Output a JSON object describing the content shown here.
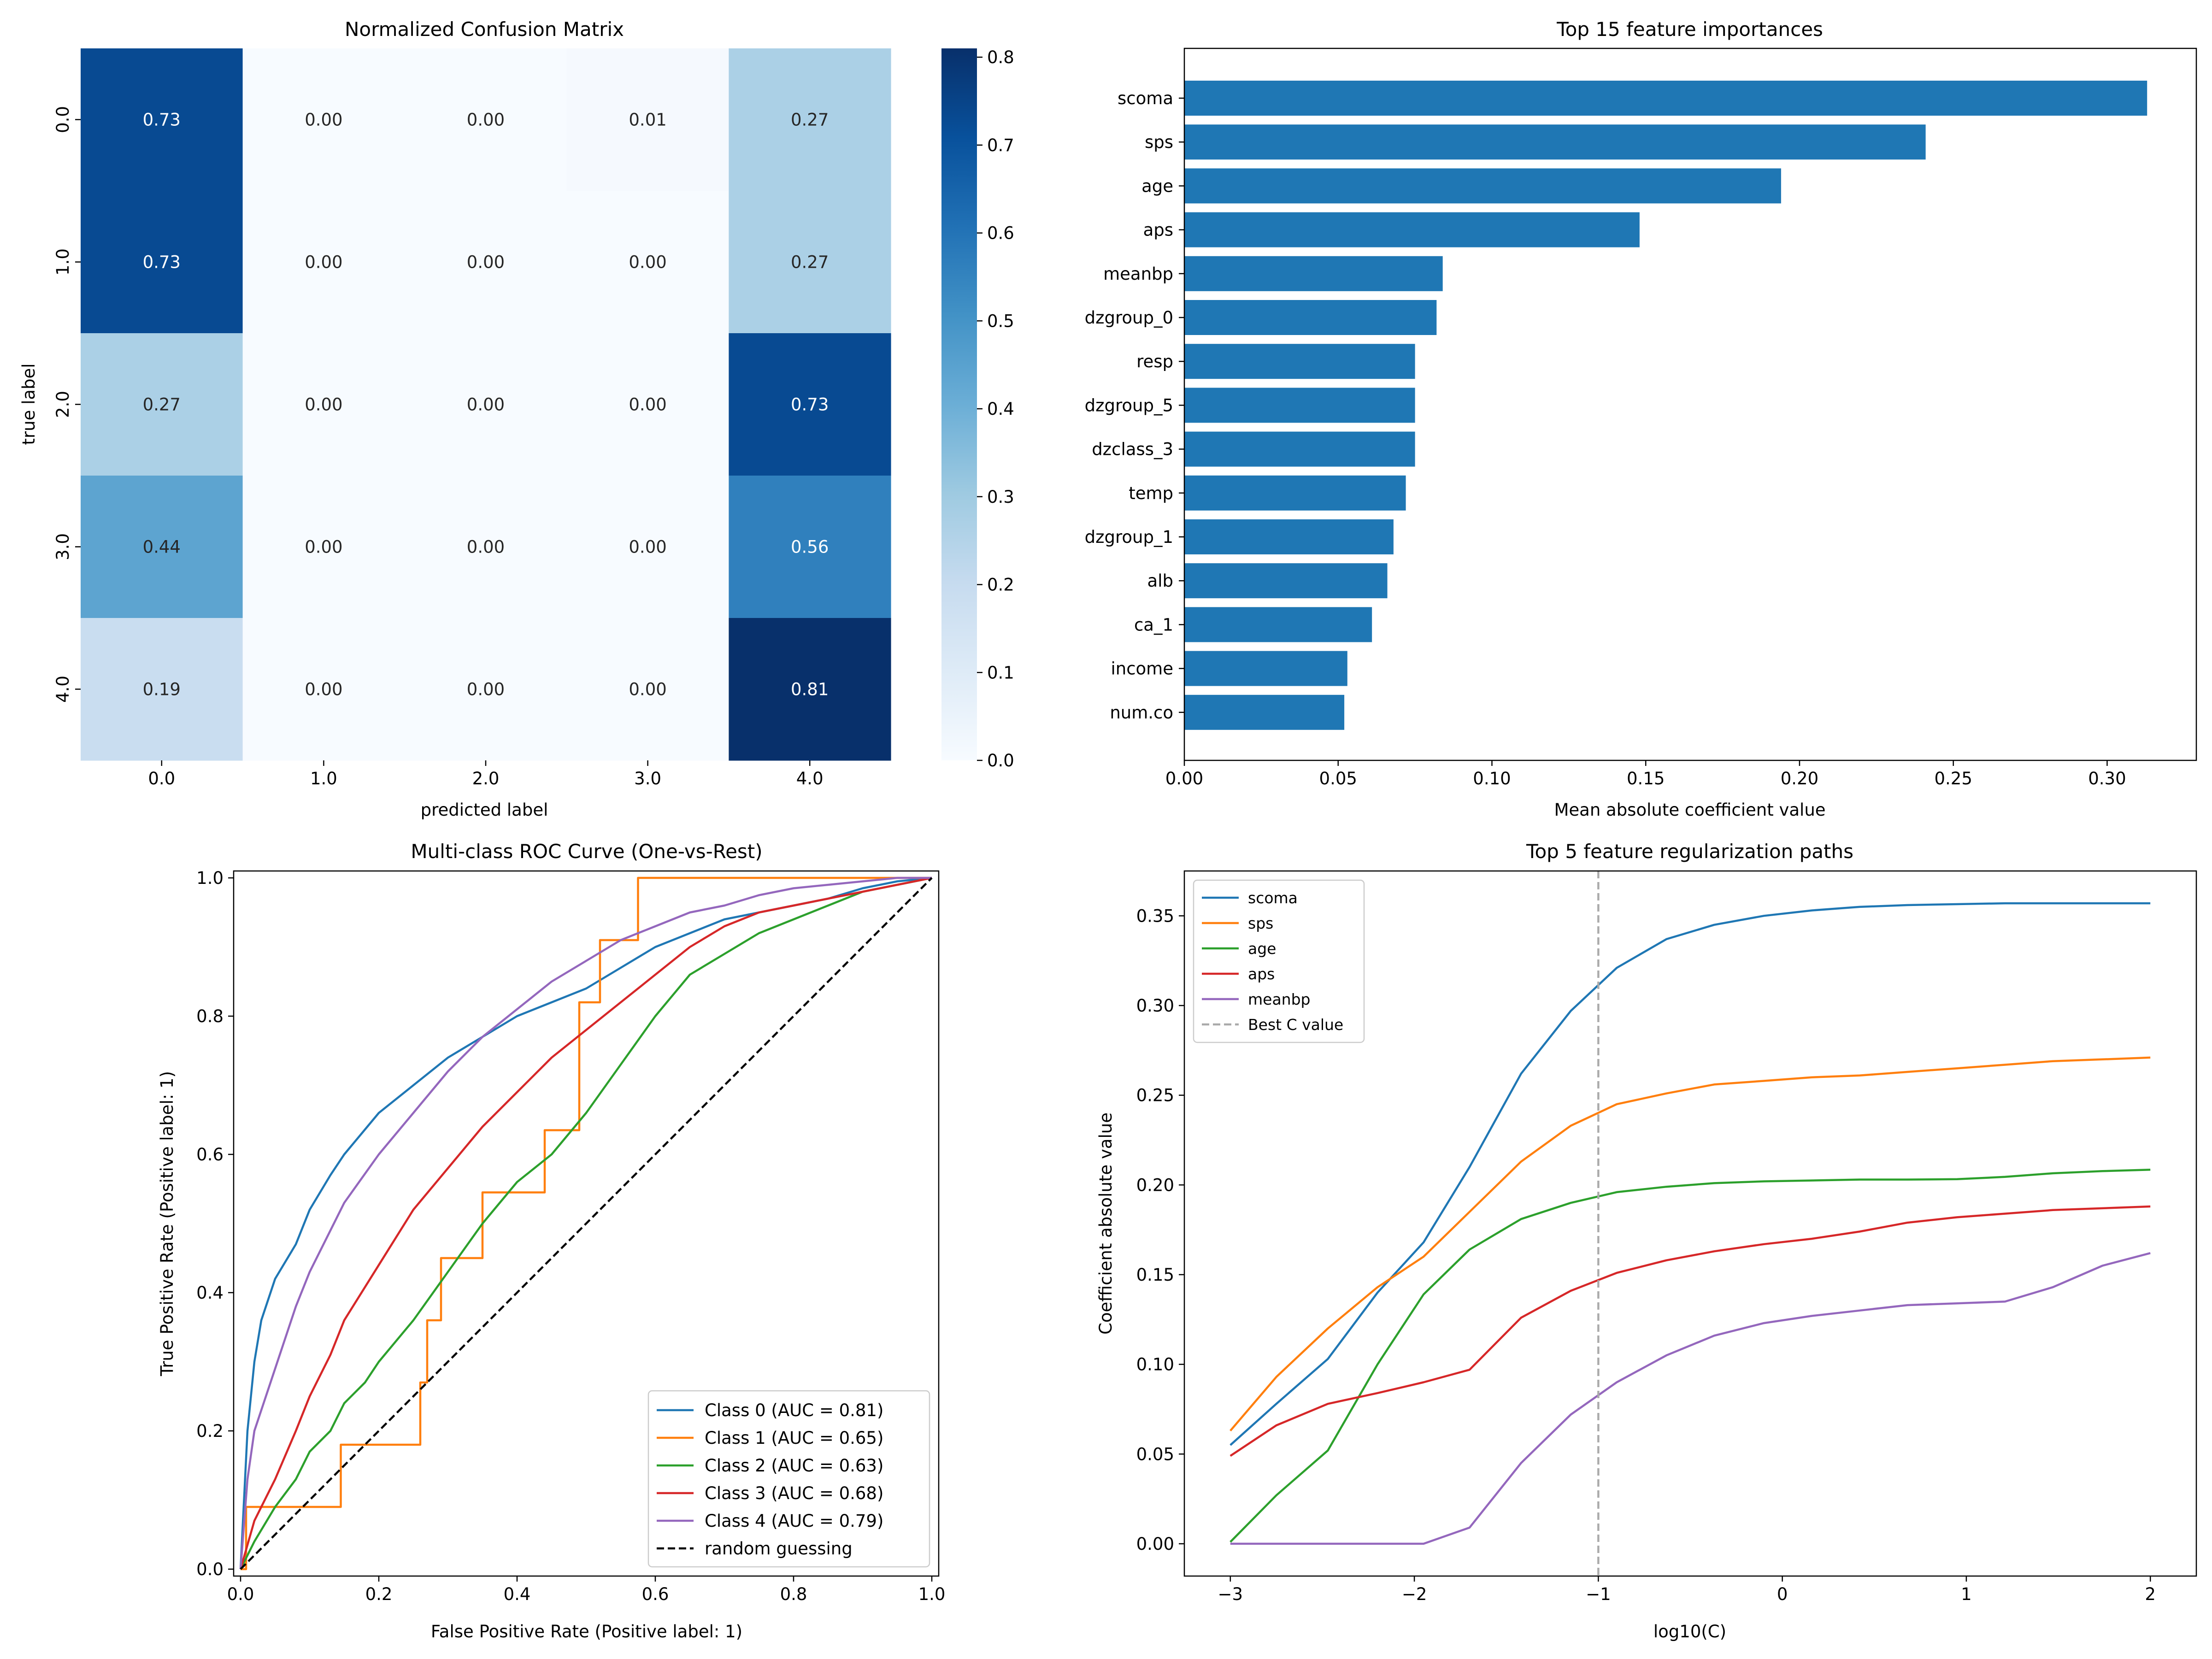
{
  "figure": {
    "colors": {
      "axis": "#000000",
      "tab_blue": "#1f77b4",
      "tab_orange": "#ff7f0e",
      "tab_green": "#2ca02c",
      "tab_red": "#d62728",
      "tab_purple": "#9467bd",
      "best_c_line": "#aaaaaa",
      "legend_edge": "#cccccc"
    }
  },
  "chart_data": [
    {
      "type": "heatmap",
      "title": "Normalized Confusion Matrix",
      "xlabel": "predicted label",
      "ylabel": "true label",
      "row_labels": [
        "0.0",
        "1.0",
        "2.0",
        "3.0",
        "4.0"
      ],
      "col_labels": [
        "0.0",
        "1.0",
        "2.0",
        "3.0",
        "4.0"
      ],
      "values": [
        [
          0.73,
          0.0,
          0.0,
          0.01,
          0.27
        ],
        [
          0.73,
          0.0,
          0.0,
          0.0,
          0.27
        ],
        [
          0.27,
          0.0,
          0.0,
          0.0,
          0.73
        ],
        [
          0.44,
          0.0,
          0.0,
          0.0,
          0.56
        ],
        [
          0.19,
          0.0,
          0.0,
          0.0,
          0.81
        ]
      ],
      "cell_labels": [
        [
          "0.73",
          "0.00",
          "0.00",
          "0.01",
          "0.27"
        ],
        [
          "0.73",
          "0.00",
          "0.00",
          "0.00",
          "0.27"
        ],
        [
          "0.27",
          "0.00",
          "0.00",
          "0.00",
          "0.73"
        ],
        [
          "0.44",
          "0.00",
          "0.00",
          "0.00",
          "0.56"
        ],
        [
          "0.19",
          "0.00",
          "0.00",
          "0.00",
          "0.81"
        ]
      ],
      "colormap": "Blues",
      "colorbar": {
        "vmin": 0.0,
        "vmax": 0.81,
        "ticks": [
          0.0,
          0.1,
          0.2,
          0.3,
          0.4,
          0.5,
          0.6,
          0.7,
          0.8
        ],
        "tick_labels": [
          "0.0",
          "0.1",
          "0.2",
          "0.3",
          "0.4",
          "0.5",
          "0.6",
          "0.7",
          "0.8"
        ]
      }
    },
    {
      "type": "bar",
      "orientation": "horizontal",
      "title": "Top 15 feature importances",
      "xlabel": "Mean absolute coefficient value",
      "ylabel": "",
      "categories": [
        "scoma",
        "sps",
        "age",
        "aps",
        "meanbp",
        "dzgroup_0",
        "resp",
        "dzgroup_5",
        "dzclass_3",
        "temp",
        "dzgroup_1",
        "alb",
        "ca_1",
        "income",
        "num.co"
      ],
      "values": [
        0.313,
        0.241,
        0.194,
        0.148,
        0.084,
        0.082,
        0.075,
        0.075,
        0.075,
        0.072,
        0.068,
        0.066,
        0.061,
        0.053,
        0.052
      ],
      "xlim": [
        0,
        0.329
      ],
      "xticks": [
        0.0,
        0.05,
        0.1,
        0.15,
        0.2,
        0.25,
        0.3
      ],
      "xtick_labels": [
        "0.00",
        "0.05",
        "0.10",
        "0.15",
        "0.20",
        "0.25",
        "0.30"
      ],
      "color": "#1f77b4"
    },
    {
      "type": "line",
      "title": "Multi-class ROC Curve (One-vs-Rest)",
      "xlabel": "False Positive Rate (Positive label: 1)",
      "ylabel": "True Positive Rate (Positive label: 1)",
      "xlim": [
        -0.01,
        1.01
      ],
      "ylim": [
        -0.01,
        1.01
      ],
      "xticks": [
        0.0,
        0.2,
        0.4,
        0.6,
        0.8,
        1.0
      ],
      "xtick_labels": [
        "0.0",
        "0.2",
        "0.4",
        "0.6",
        "0.8",
        "1.0"
      ],
      "yticks": [
        0.0,
        0.2,
        0.4,
        0.6,
        0.8,
        1.0
      ],
      "ytick_labels": [
        "0.0",
        "0.2",
        "0.4",
        "0.6",
        "0.8",
        "1.0"
      ],
      "legend": "lower right",
      "series": [
        {
          "name": "Class 0 (AUC = 0.81)",
          "color": "#1f77b4",
          "dashed": false,
          "step": false,
          "x": [
            0,
            0.01,
            0.02,
            0.03,
            0.05,
            0.08,
            0.1,
            0.13,
            0.15,
            0.2,
            0.25,
            0.3,
            0.35,
            0.4,
            0.45,
            0.5,
            0.55,
            0.6,
            0.65,
            0.7,
            0.75,
            0.8,
            0.85,
            0.9,
            0.95,
            1.0
          ],
          "y": [
            0,
            0.2,
            0.3,
            0.36,
            0.42,
            0.47,
            0.52,
            0.57,
            0.6,
            0.66,
            0.7,
            0.74,
            0.77,
            0.8,
            0.82,
            0.84,
            0.87,
            0.9,
            0.92,
            0.94,
            0.95,
            0.96,
            0.97,
            0.985,
            0.995,
            1.0
          ]
        },
        {
          "name": "Class 1 (AUC = 0.65)",
          "color": "#ff7f0e",
          "dashed": false,
          "step": true,
          "x": [
            0,
            0.008,
            0.008,
            0.03,
            0.03,
            0.145,
            0.145,
            0.26,
            0.26,
            0.27,
            0.27,
            0.28,
            0.28,
            0.29,
            0.29,
            0.35,
            0.35,
            0.44,
            0.44,
            0.49,
            0.49,
            0.52,
            0.52,
            0.575,
            0.575,
            1.0
          ],
          "y": [
            0,
            0,
            0.09,
            0.09,
            0.09,
            0.09,
            0.18,
            0.18,
            0.27,
            0.27,
            0.36,
            0.36,
            0.36,
            0.36,
            0.45,
            0.45,
            0.545,
            0.545,
            0.635,
            0.635,
            0.82,
            0.82,
            0.91,
            0.91,
            1.0,
            1.0
          ]
        },
        {
          "name": "Class 2 (AUC = 0.63)",
          "color": "#2ca02c",
          "dashed": false,
          "step": false,
          "x": [
            0,
            0.02,
            0.05,
            0.08,
            0.1,
            0.13,
            0.15,
            0.18,
            0.2,
            0.25,
            0.3,
            0.35,
            0.4,
            0.45,
            0.5,
            0.55,
            0.6,
            0.65,
            0.7,
            0.75,
            0.8,
            0.85,
            0.9,
            0.95,
            1.0
          ],
          "y": [
            0,
            0.04,
            0.09,
            0.13,
            0.17,
            0.2,
            0.24,
            0.27,
            0.3,
            0.36,
            0.43,
            0.5,
            0.56,
            0.6,
            0.66,
            0.73,
            0.8,
            0.86,
            0.89,
            0.92,
            0.94,
            0.96,
            0.98,
            0.99,
            1.0
          ]
        },
        {
          "name": "Class 3 (AUC = 0.68)",
          "color": "#d62728",
          "dashed": false,
          "step": false,
          "x": [
            0,
            0.02,
            0.05,
            0.08,
            0.1,
            0.13,
            0.15,
            0.2,
            0.25,
            0.3,
            0.35,
            0.4,
            0.45,
            0.5,
            0.55,
            0.6,
            0.65,
            0.7,
            0.75,
            0.8,
            0.85,
            0.9,
            0.95,
            1.0
          ],
          "y": [
            0,
            0.07,
            0.13,
            0.2,
            0.25,
            0.31,
            0.36,
            0.44,
            0.52,
            0.58,
            0.64,
            0.69,
            0.74,
            0.78,
            0.82,
            0.86,
            0.9,
            0.93,
            0.95,
            0.96,
            0.97,
            0.98,
            0.99,
            1.0
          ]
        },
        {
          "name": "Class 4 (AUC = 0.79)",
          "color": "#9467bd",
          "dashed": false,
          "step": false,
          "x": [
            0,
            0.01,
            0.02,
            0.04,
            0.06,
            0.08,
            0.1,
            0.13,
            0.15,
            0.2,
            0.25,
            0.3,
            0.35,
            0.4,
            0.45,
            0.5,
            0.55,
            0.6,
            0.65,
            0.7,
            0.75,
            0.8,
            0.85,
            0.9,
            0.95,
            1.0
          ],
          "y": [
            0,
            0.13,
            0.2,
            0.26,
            0.32,
            0.38,
            0.43,
            0.49,
            0.53,
            0.6,
            0.66,
            0.72,
            0.77,
            0.81,
            0.85,
            0.88,
            0.91,
            0.93,
            0.95,
            0.96,
            0.975,
            0.985,
            0.99,
            0.995,
            1.0,
            1.0
          ]
        },
        {
          "name": "random guessing",
          "color": "#000000",
          "dashed": true,
          "step": false,
          "x": [
            0,
            1
          ],
          "y": [
            0,
            1
          ]
        }
      ]
    },
    {
      "type": "line",
      "title": "Top 5 feature regularization paths",
      "xlabel": "log10(C)",
      "ylabel": "Coefficient absolute value",
      "xlim": [
        -3.25,
        2.25
      ],
      "ylim": [
        -0.018,
        0.375
      ],
      "xticks": [
        -3,
        -2,
        -1,
        0,
        1,
        2
      ],
      "xtick_labels": [
        "−3",
        "−2",
        "−1",
        "0",
        "1",
        "2"
      ],
      "yticks": [
        0.0,
        0.05,
        0.1,
        0.15,
        0.2,
        0.25,
        0.3,
        0.35
      ],
      "ytick_labels": [
        "0.00",
        "0.05",
        "0.10",
        "0.15",
        "0.20",
        "0.25",
        "0.30",
        "0.35"
      ],
      "legend": "upper left",
      "best_c": {
        "label": "Best C value",
        "x": -1.0
      },
      "x": [
        -3.0,
        -2.75,
        -2.47,
        -2.2,
        -1.95,
        -1.7,
        -1.42,
        -1.15,
        -0.9,
        -0.63,
        -0.37,
        -0.1,
        0.16,
        0.42,
        0.68,
        0.95,
        1.21,
        1.47,
        1.74,
        2.0
      ],
      "series": [
        {
          "name": "scoma",
          "color": "#1f77b4",
          "values": [
            0.055,
            0.078,
            0.103,
            0.14,
            0.168,
            0.21,
            0.262,
            0.297,
            0.321,
            0.337,
            0.345,
            0.35,
            0.353,
            0.355,
            0.356,
            0.3565,
            0.357,
            0.357,
            0.357,
            0.357
          ]
        },
        {
          "name": "sps",
          "color": "#ff7f0e",
          "values": [
            0.063,
            0.093,
            0.12,
            0.143,
            0.16,
            0.185,
            0.213,
            0.233,
            0.245,
            0.251,
            0.256,
            0.258,
            0.26,
            0.261,
            0.263,
            0.265,
            0.267,
            0.269,
            0.27,
            0.271
          ]
        },
        {
          "name": "age",
          "color": "#2ca02c",
          "values": [
            0.001,
            0.027,
            0.052,
            0.1,
            0.139,
            0.164,
            0.181,
            0.19,
            0.196,
            0.199,
            0.201,
            0.202,
            0.2025,
            0.203,
            0.203,
            0.2032,
            0.2045,
            0.2065,
            0.2077,
            0.2085
          ]
        },
        {
          "name": "aps",
          "color": "#d62728",
          "values": [
            0.049,
            0.066,
            0.078,
            0.084,
            0.09,
            0.097,
            0.126,
            0.141,
            0.151,
            0.158,
            0.163,
            0.167,
            0.17,
            0.174,
            0.179,
            0.182,
            0.184,
            0.186,
            0.187,
            0.188
          ]
        },
        {
          "name": "meanbp",
          "color": "#9467bd",
          "values": [
            0.0,
            0.0,
            0.0,
            0.0,
            0.0,
            0.009,
            0.045,
            0.072,
            0.09,
            0.105,
            0.116,
            0.123,
            0.127,
            0.13,
            0.133,
            0.134,
            0.135,
            0.143,
            0.155,
            0.162
          ]
        }
      ]
    }
  ]
}
